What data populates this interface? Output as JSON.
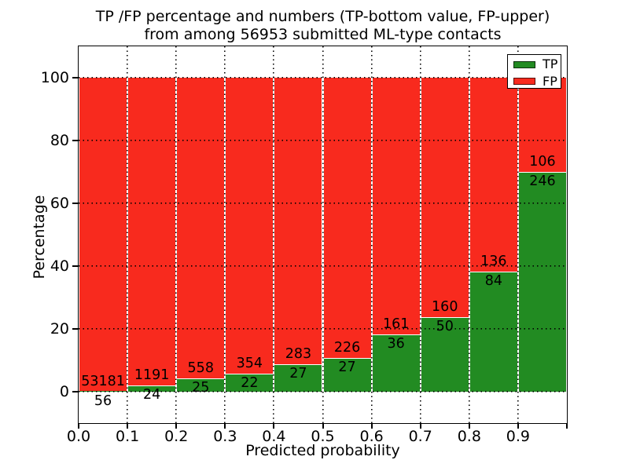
{
  "figure": {
    "title_line1": "TP /FP percentage and numbers (TP-bottom value, FP-upper)",
    "title_line2": "from among 56953 submitted ML-type contacts"
  },
  "chart_data": {
    "type": "bar",
    "stacked": true,
    "title": "TP /FP percentage and numbers (TP-bottom value, FP-upper)\nfrom among 56953 submitted ML-type contacts",
    "xlabel": "Predicted probability",
    "ylabel": "Percentage",
    "xlim": [
      0.0,
      1.0
    ],
    "ylim": [
      -10,
      110
    ],
    "x_tick_labels": [
      "0.0",
      "0.1",
      "0.2",
      "0.3",
      "0.4",
      "0.5",
      "0.6",
      "0.7",
      "0.8",
      "0.9"
    ],
    "y_tick_values": [
      0,
      20,
      40,
      60,
      80,
      100
    ],
    "grid": "dotted black, horizontal and vertical",
    "legend": {
      "position": "upper right",
      "entries": [
        {
          "label": "TP",
          "color": "#228b22"
        },
        {
          "label": "FP",
          "color": "#f82a1e"
        }
      ]
    },
    "note": "Each bar spans a 0.1 probability bin; green TP segment height = tp/(tp+fp)*100 %, red FP segment fills to 100 %. FP count printed above the TP/FP boundary, TP count below it.",
    "bins": [
      {
        "range": [
          0.0,
          0.1
        ],
        "tp": 56,
        "fp": 53181
      },
      {
        "range": [
          0.1,
          0.2
        ],
        "tp": 24,
        "fp": 1191
      },
      {
        "range": [
          0.2,
          0.3
        ],
        "tp": 25,
        "fp": 558
      },
      {
        "range": [
          0.3,
          0.4
        ],
        "tp": 22,
        "fp": 354
      },
      {
        "range": [
          0.4,
          0.5
        ],
        "tp": 27,
        "fp": 283
      },
      {
        "range": [
          0.5,
          0.6
        ],
        "tp": 27,
        "fp": 226
      },
      {
        "range": [
          0.6,
          0.7
        ],
        "tp": 36,
        "fp": 161
      },
      {
        "range": [
          0.7,
          0.8
        ],
        "tp": 50,
        "fp": 160
      },
      {
        "range": [
          0.8,
          0.9
        ],
        "tp": 84,
        "fp": 136
      },
      {
        "range": [
          0.9,
          1.0
        ],
        "tp": 246,
        "fp": 106
      }
    ],
    "colors": {
      "tp_green": "#228b22",
      "fp_red": "#f82a1e",
      "background": "#ffffff",
      "axis": "#000000",
      "bar_edge": "#ffffff"
    }
  }
}
